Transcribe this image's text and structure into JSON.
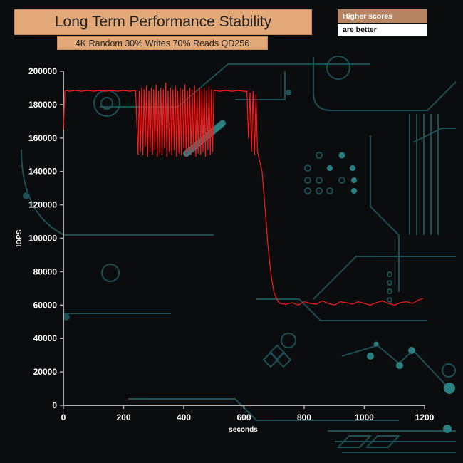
{
  "header": {
    "title": "Long Term Performance Stability",
    "subtitle": "4K Random 30% Writes 70% Reads QD256",
    "badge_line1": "Higher scores",
    "badge_line2": "are better"
  },
  "colors": {
    "series": "#ff1a1a",
    "axis": "#b0b0b0",
    "background": "#0b0c0d",
    "title_box": "#e2a878",
    "badge_box": "#b58462",
    "circuit": "#1c4f53"
  },
  "chart_data": {
    "type": "line",
    "title": "Long Term Performance Stability",
    "subtitle": "4K Random 30% Writes 70% Reads QD256",
    "xlabel": "seconds",
    "ylabel": "IOPS",
    "xlim": [
      0,
      1200
    ],
    "ylim": [
      0,
      200000
    ],
    "x_ticks": [
      0,
      200,
      400,
      600,
      800,
      1000,
      1200
    ],
    "y_ticks": [
      0,
      20000,
      40000,
      60000,
      80000,
      100000,
      120000,
      140000,
      160000,
      180000,
      200000
    ],
    "grid": false,
    "legend": "none",
    "series": [
      {
        "x": [
          0,
          5,
          10,
          20,
          40,
          60,
          80,
          100,
          120,
          140,
          160,
          180,
          200,
          220,
          240,
          248,
          252,
          256,
          260,
          264,
          268,
          272,
          276,
          280,
          284,
          288,
          292,
          296,
          300,
          304,
          308,
          312,
          316,
          320,
          324,
          328,
          332,
          336,
          340,
          344,
          348,
          352,
          356,
          360,
          364,
          368,
          372,
          376,
          380,
          384,
          388,
          392,
          396,
          400,
          404,
          408,
          412,
          416,
          420,
          424,
          428,
          432,
          436,
          440,
          444,
          448,
          452,
          456,
          460,
          464,
          468,
          472,
          476,
          480,
          484,
          488,
          492,
          496,
          500,
          520,
          540,
          560,
          580,
          600,
          610,
          615,
          620,
          625,
          630,
          635,
          640,
          645,
          650,
          660,
          670,
          680,
          690,
          700,
          710,
          720,
          740,
          760,
          780,
          800,
          820,
          840,
          860,
          880,
          900,
          920,
          940,
          960,
          980,
          1000,
          1020,
          1040,
          1060,
          1080,
          1100,
          1120,
          1140,
          1160,
          1180,
          1195
        ],
        "values": [
          165000,
          188000,
          188500,
          188000,
          188500,
          188000,
          188500,
          188000,
          188500,
          188000,
          188500,
          188000,
          188500,
          188000,
          188500,
          150000,
          188000,
          152000,
          190000,
          150000,
          189000,
          155000,
          191000,
          149000,
          188000,
          152000,
          190000,
          150000,
          189000,
          153000,
          192000,
          149000,
          188000,
          151000,
          190000,
          150000,
          189000,
          154000,
          193000,
          149000,
          188000,
          152000,
          190000,
          150000,
          189000,
          153000,
          191000,
          149000,
          188000,
          151000,
          190000,
          150000,
          189000,
          154000,
          192000,
          149000,
          188000,
          152000,
          190000,
          150000,
          189000,
          153000,
          191000,
          149000,
          188000,
          151000,
          190000,
          150000,
          189000,
          152000,
          190000,
          149000,
          188000,
          153000,
          191000,
          150000,
          189000,
          152000,
          188500,
          188000,
          188500,
          188000,
          188500,
          188000,
          188000,
          160000,
          187000,
          152000,
          188000,
          150000,
          186000,
          152000,
          148000,
          140000,
          118000,
          95000,
          78000,
          67000,
          63000,
          61000,
          60500,
          61500,
          60000,
          62000,
          61000,
          60500,
          62500,
          61000,
          60000,
          62000,
          61500,
          60500,
          62000,
          61000,
          60000,
          61500,
          62500,
          61000,
          60000,
          61500,
          62000,
          61000,
          63000,
          64000
        ]
      }
    ]
  }
}
